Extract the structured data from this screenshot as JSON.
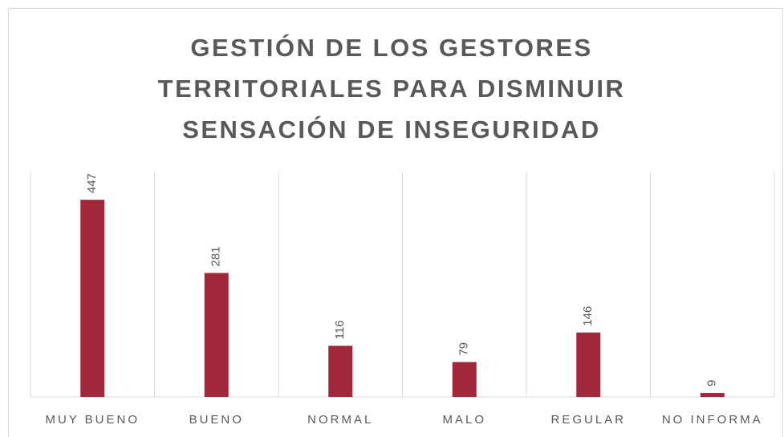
{
  "chart_data": {
    "type": "bar",
    "title": "GESTIÓN DE LOS GESTORES TERRITORIALES PARA DISMINUIR SENSACIÓN DE INSEGURIDAD",
    "categories": [
      "MUY BUENO",
      "BUENO",
      "NORMAL",
      "MALO",
      "REGULAR",
      "NO INFORMA"
    ],
    "values": [
      447,
      281,
      116,
      79,
      146,
      9
    ],
    "color": "#a0283a",
    "ylim": [
      0,
      500
    ]
  }
}
